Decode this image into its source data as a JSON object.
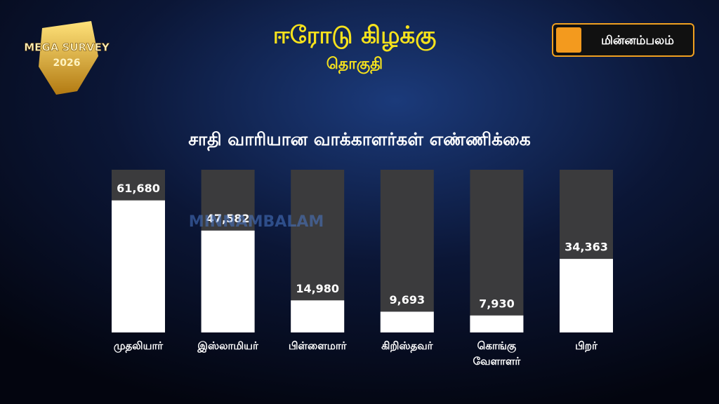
{
  "header": {
    "title": "ஈரோடு கிழக்கு",
    "subtitle": "தொகுதி",
    "badge": {
      "line1": "MEGA SURVEY",
      "line2": "2026"
    },
    "logo": "மின்னம்பலம்",
    "watermark": "MINNAMBALAM"
  },
  "chart_data": {
    "type": "bar",
    "title": "சாதி வாரியான வாக்காளர்கள்  எண்ணிக்கை",
    "categories": [
      "முதலியார்",
      "இஸ்லாமியர்",
      "பிள்ளைமார்",
      "கிறிஸ்தவர்",
      "கொங்கு வேளாளர்",
      "பிறர்"
    ],
    "values": [
      61680,
      47582,
      14980,
      9693,
      7930,
      34363
    ],
    "value_labels": [
      "61,680",
      "47,582",
      "14,980",
      "9,693",
      "7,930",
      "34,363"
    ],
    "color": "#ffffff",
    "track_color": "#3b3b3d",
    "ylim": [
      0,
      76000
    ]
  }
}
